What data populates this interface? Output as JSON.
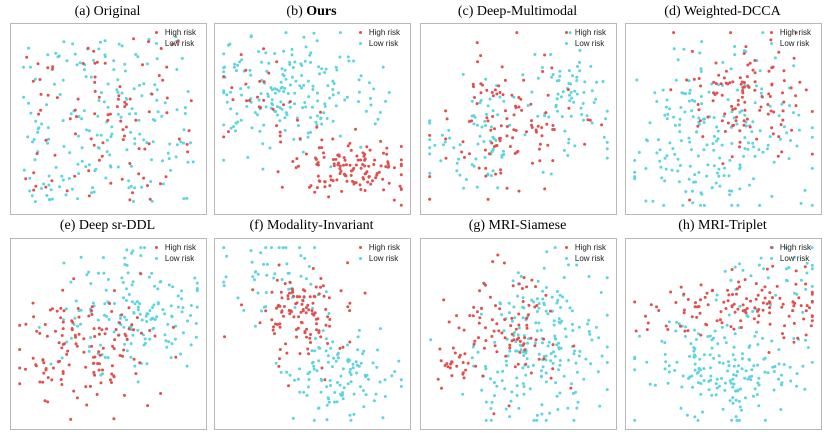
{
  "figure": {
    "colors": {
      "high": "#e0514d",
      "low": "#5dd5df"
    },
    "legend": {
      "high": "High risk",
      "low": "Low risk"
    }
  },
  "chart_data": [
    {
      "type": "scatter",
      "title": "(a) Original",
      "title_bold": "",
      "xlim": [
        0,
        10
      ],
      "ylim": [
        0,
        10
      ],
      "legend": [
        "High risk",
        "Low risk"
      ],
      "series": [
        {
          "name": "High risk",
          "pattern": "uniform",
          "count": 95,
          "center": [
            5.0,
            5.0
          ],
          "spread": [
            4.5,
            4.5
          ],
          "seed": 11
        },
        {
          "name": "Low risk",
          "pattern": "uniform",
          "count": 190,
          "center": [
            5.0,
            5.0
          ],
          "spread": [
            4.6,
            4.6
          ],
          "seed": 12
        }
      ]
    },
    {
      "type": "scatter",
      "title": "(b) ",
      "title_bold": "Ours",
      "xlim": [
        0,
        10
      ],
      "ylim": [
        0,
        10
      ],
      "legend": [
        "High risk",
        "Low risk"
      ],
      "series": [
        {
          "name": "High risk",
          "pattern": "gaussian",
          "count": 130,
          "center": [
            7.0,
            2.3
          ],
          "spread": [
            1.7,
            0.85
          ],
          "seed": 21
        },
        {
          "name": "High risk",
          "pattern": "gaussian",
          "count": 28,
          "center": [
            2.3,
            6.5
          ],
          "spread": [
            1.0,
            1.2
          ],
          "seed": 22
        },
        {
          "name": "Low risk",
          "pattern": "gaussian",
          "count": 195,
          "center": [
            3.6,
            6.3
          ],
          "spread": [
            2.3,
            1.6
          ],
          "seed": 23
        }
      ]
    },
    {
      "type": "scatter",
      "title": "(c) Deep-Multimodal",
      "title_bold": "",
      "xlim": [
        0,
        10
      ],
      "ylim": [
        0,
        10
      ],
      "legend": [
        "High risk",
        "Low risk"
      ],
      "series": [
        {
          "name": "High risk",
          "pattern": "gaussian",
          "count": 110,
          "center": [
            4.3,
            4.8
          ],
          "spread": [
            1.8,
            1.8
          ],
          "seed": 31
        },
        {
          "name": "Low risk",
          "pattern": "gaussian",
          "count": 75,
          "center": [
            7.7,
            6.3
          ],
          "spread": [
            1.3,
            1.5
          ],
          "seed": 32
        },
        {
          "name": "Low risk",
          "pattern": "gaussian",
          "count": 70,
          "center": [
            2.6,
            3.8
          ],
          "spread": [
            1.4,
            1.4
          ],
          "seed": 33
        }
      ]
    },
    {
      "type": "scatter",
      "title": "(d) Weighted-DCCA",
      "title_bold": "",
      "xlim": [
        0,
        10
      ],
      "ylim": [
        0,
        10
      ],
      "legend": [
        "High risk",
        "Low risk"
      ],
      "series": [
        {
          "name": "High risk",
          "pattern": "gaussian",
          "count": 115,
          "center": [
            6.4,
            6.2
          ],
          "spread": [
            1.6,
            1.7
          ],
          "seed": 41
        },
        {
          "name": "Low risk",
          "pattern": "gaussian",
          "count": 210,
          "center": [
            4.4,
            4.3
          ],
          "spread": [
            2.4,
            2.3
          ],
          "seed": 42
        }
      ]
    },
    {
      "type": "scatter",
      "title": "(e) Deep sr-DDL",
      "title_bold": "",
      "xlim": [
        0,
        10
      ],
      "ylim": [
        0,
        10
      ],
      "legend": [
        "High risk",
        "Low risk"
      ],
      "series": [
        {
          "name": "High risk",
          "pattern": "gaussian",
          "count": 140,
          "center": [
            3.4,
            4.1
          ],
          "spread": [
            1.8,
            1.6
          ],
          "seed": 51
        },
        {
          "name": "Low risk",
          "pattern": "gaussian",
          "count": 165,
          "center": [
            6.6,
            6.3
          ],
          "spread": [
            1.9,
            1.8
          ],
          "seed": 52
        }
      ]
    },
    {
      "type": "scatter",
      "title": "(f) Modality-Invariant",
      "title_bold": "",
      "xlim": [
        0,
        10
      ],
      "ylim": [
        0,
        10
      ],
      "legend": [
        "High risk",
        "Low risk"
      ],
      "series": [
        {
          "name": "High risk",
          "pattern": "gaussian",
          "count": 120,
          "center": [
            4.2,
            6.2
          ],
          "spread": [
            1.5,
            1.2
          ],
          "seed": 61
        },
        {
          "name": "Low risk",
          "pattern": "gaussian",
          "count": 115,
          "center": [
            6.6,
            2.6
          ],
          "spread": [
            1.7,
            1.3
          ],
          "seed": 62
        },
        {
          "name": "Low risk",
          "pattern": "gaussian",
          "count": 55,
          "center": [
            3.2,
            8.1
          ],
          "spread": [
            1.3,
            1.2
          ],
          "seed": 63
        }
      ]
    },
    {
      "type": "scatter",
      "title": "(g) MRI-Siamese",
      "title_bold": "",
      "xlim": [
        0,
        10
      ],
      "ylim": [
        0,
        10
      ],
      "legend": [
        "High risk",
        "Low risk"
      ],
      "series": [
        {
          "name": "High risk",
          "pattern": "gaussian",
          "count": 95,
          "center": [
            4.3,
            5.4
          ],
          "spread": [
            1.6,
            1.6
          ],
          "seed": 71
        },
        {
          "name": "High risk",
          "pattern": "gaussian",
          "count": 22,
          "center": [
            1.5,
            3.2
          ],
          "spread": [
            0.6,
            0.6
          ],
          "seed": 72
        },
        {
          "name": "Low risk",
          "pattern": "gaussian",
          "count": 215,
          "center": [
            6.2,
            4.1
          ],
          "spread": [
            1.9,
            2.1
          ],
          "seed": 73
        }
      ]
    },
    {
      "type": "scatter",
      "title": "(h) MRI-Triplet",
      "title_bold": "",
      "xlim": [
        0,
        10
      ],
      "ylim": [
        0,
        10
      ],
      "legend": [
        "High risk",
        "Low risk"
      ],
      "series": [
        {
          "name": "High risk",
          "pattern": "gaussian",
          "count": 130,
          "center": [
            6.0,
            6.6
          ],
          "spread": [
            2.6,
            0.9
          ],
          "seed": 81
        },
        {
          "name": "Low risk",
          "pattern": "gaussian",
          "count": 185,
          "center": [
            4.9,
            3.0
          ],
          "spread": [
            2.3,
            1.6
          ],
          "seed": 82
        },
        {
          "name": "Low risk",
          "pattern": "gaussian",
          "count": 40,
          "center": [
            7.6,
            7.8
          ],
          "spread": [
            1.4,
            1.3
          ],
          "seed": 83
        }
      ]
    }
  ]
}
